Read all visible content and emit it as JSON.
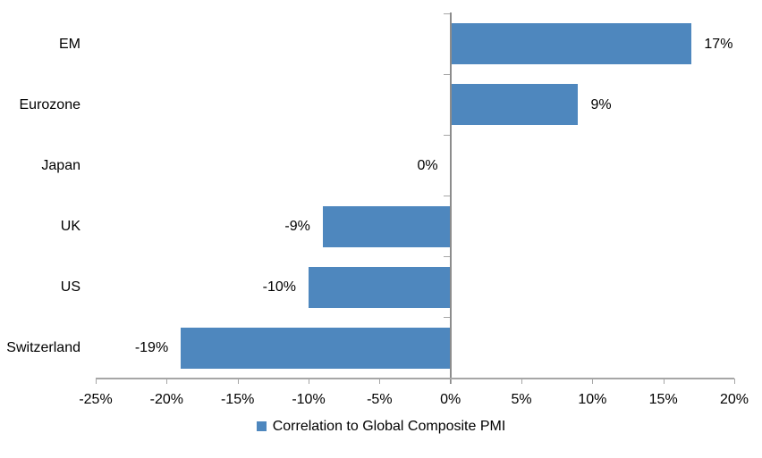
{
  "chart_data": {
    "type": "bar",
    "orientation": "horizontal",
    "title": "",
    "categories": [
      "EM",
      "Eurozone",
      "Japan",
      "UK",
      "US",
      "Switzerland"
    ],
    "values": [
      17,
      9,
      0,
      -9,
      -10,
      -19
    ],
    "value_labels": [
      "17%",
      "9%",
      "0%",
      "-9%",
      "-10%",
      "-19%"
    ],
    "series": [
      {
        "name": "Correlation to Global Composite PMI",
        "values": [
          17,
          9,
          0,
          -9,
          -10,
          -19
        ]
      }
    ],
    "legend_label": "Correlation to Global Composite PMI",
    "legend_position": "bottom-center",
    "xlabel": "",
    "ylabel": "",
    "xlim": [
      -25,
      20
    ],
    "x_tick_values": [
      -25,
      -20,
      -15,
      -10,
      -5,
      0,
      5,
      10,
      15,
      20
    ],
    "x_tick_labels": [
      "-25%",
      "-20%",
      "-15%",
      "-10%",
      "-5%",
      "0%",
      "5%",
      "10%",
      "15%",
      "20%"
    ],
    "grid": false,
    "data_labels_shown": true,
    "colors": {
      "bar_fill": "#4E87BE",
      "x_axis_line": "#A6A6A6",
      "zero_axis_line": "#8C8C8C",
      "tick_mark": "#A6A6A6",
      "text": "#000000",
      "background": "#FFFFFF"
    }
  }
}
